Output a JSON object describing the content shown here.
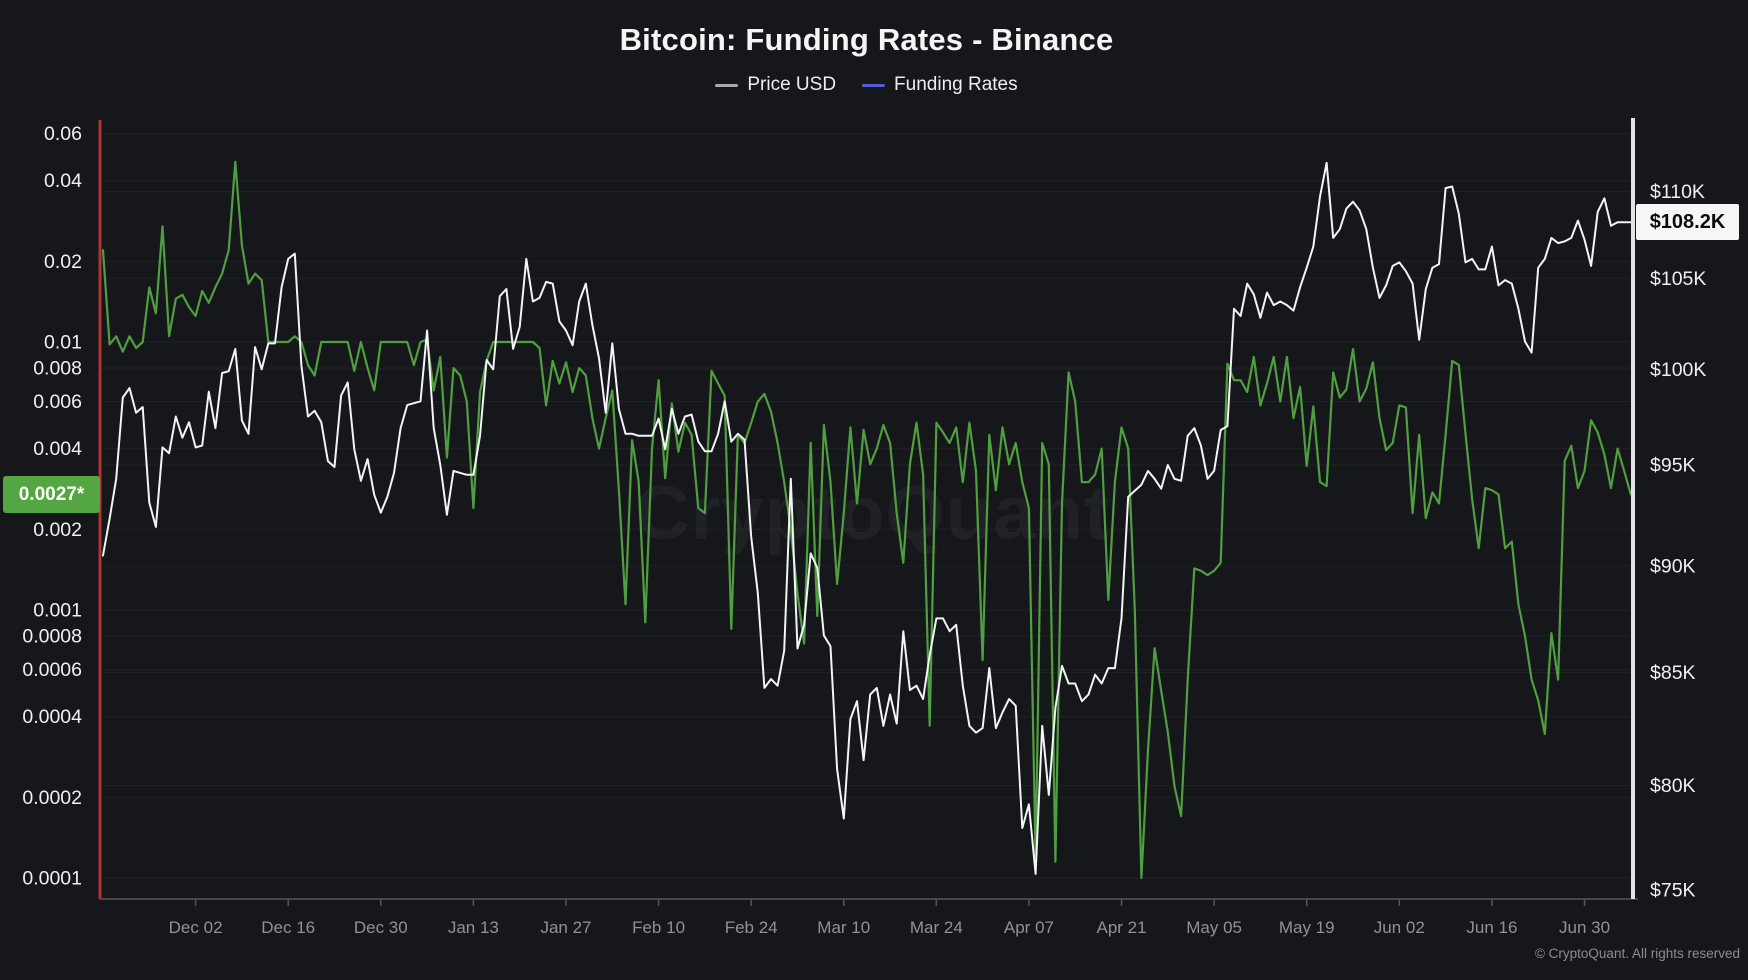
{
  "title": "Bitcoin: Funding Rates - Binance",
  "legend": [
    {
      "label": "Price USD",
      "color": "#a7a9ad"
    },
    {
      "label": "Funding Rates",
      "color": "#575dd8"
    }
  ],
  "badges": {
    "funding_current_label": "0.0027*",
    "price_current_label": "$108.2K"
  },
  "watermark": "CryptoQuant",
  "copyright": "© CryptoQuant. All rights reserved",
  "colors": {
    "background": "#16171b",
    "price_line": "#f2f4f6",
    "funding_line": "#4f9e3f",
    "red_marker_line": "#ad3534",
    "right_axis_line": "#e2e3e5",
    "baseline": "#55565b",
    "grid": "rgba(255,255,255,0.045)",
    "axis_label": "#eef0f2",
    "date_label": "#8f929a",
    "funding_badge_bg": "#54a642",
    "price_badge_bg": "#f5f6f7"
  },
  "chart_data": {
    "type": "line",
    "title": "Bitcoin: Funding Rates - Binance",
    "x_axis": {
      "start_date": "2024-11-18",
      "end_date": "2025-07-07",
      "interval_days": 1,
      "tick_labels": [
        "Dec 02",
        "Dec 16",
        "Dec 30",
        "Jan 13",
        "Jan 27",
        "Feb 10",
        "Feb 24",
        "Mar 10",
        "Mar 24",
        "Apr 07",
        "Apr 21",
        "May 05",
        "May 19",
        "Jun 02",
        "Jun 16",
        "Jun 30"
      ],
      "tick_day_offsets": [
        14,
        28,
        42,
        56,
        70,
        84,
        98,
        112,
        126,
        140,
        154,
        168,
        182,
        196,
        210,
        224
      ]
    },
    "y_left": {
      "name": "Funding Rates",
      "scale": "log",
      "tick_labels": [
        "0.06",
        "0.04",
        "0.02",
        "0.01",
        "0.008",
        "0.006",
        "0.004",
        "0.002",
        "0.001",
        "0.0008",
        "0.0006",
        "0.0004",
        "0.0002",
        "0.0001"
      ],
      "tick_values": [
        0.06,
        0.04,
        0.02,
        0.01,
        0.008,
        0.006,
        0.004,
        0.002,
        0.001,
        0.0008,
        0.0006,
        0.0004,
        0.0002,
        0.0001
      ],
      "current_value": 0.0027
    },
    "y_right": {
      "name": "Price USD",
      "scale": "log",
      "unit": "USD (thousands)",
      "tick_labels": [
        "$110K",
        "$105K",
        "$100K",
        "$95K",
        "$90K",
        "$85K",
        "$80K",
        "$75K"
      ],
      "tick_values": [
        110,
        105,
        100,
        95,
        90,
        85,
        80,
        75
      ],
      "current_value": 108.2
    },
    "series": [
      {
        "name": "Price USD",
        "axis": "right",
        "color": "#f2f4f6",
        "values": [
          90.5,
          92.3,
          94.3,
          98.5,
          99.0,
          97.7,
          98.0,
          93.1,
          91.9,
          95.9,
          95.6,
          97.5,
          96.4,
          97.2,
          95.9,
          96.0,
          98.8,
          96.9,
          99.8,
          99.9,
          101.1,
          97.3,
          96.6,
          101.2,
          100.0,
          101.4,
          101.4,
          104.5,
          106.1,
          106.4,
          100.2,
          97.5,
          97.8,
          97.2,
          95.2,
          94.9,
          98.6,
          99.3,
          95.8,
          94.2,
          95.3,
          93.5,
          92.6,
          93.4,
          94.6,
          96.9,
          98.1,
          98.2,
          98.3,
          102.1,
          96.9,
          95.0,
          92.5,
          94.7,
          94.6,
          94.5,
          94.5,
          96.5,
          100.5,
          100.0,
          104.0,
          104.4,
          101.1,
          102.3,
          106.1,
          103.7,
          103.9,
          104.8,
          104.7,
          102.6,
          102.1,
          101.3,
          103.7,
          104.7,
          102.4,
          100.6,
          97.7,
          101.4,
          97.9,
          96.6,
          96.6,
          96.5,
          96.5,
          96.5,
          97.4,
          95.8,
          97.9,
          96.6,
          97.5,
          97.6,
          96.2,
          95.7,
          95.7,
          96.6,
          98.3,
          96.2,
          96.6,
          96.3,
          91.4,
          88.7,
          84.3,
          84.7,
          84.4,
          86.0,
          94.3,
          86.1,
          87.2,
          90.6,
          89.9,
          86.7,
          86.2,
          80.7,
          78.6,
          82.9,
          83.7,
          81.1,
          84.0,
          84.3,
          82.6,
          84.0,
          82.7,
          86.9,
          84.2,
          84.4,
          83.8,
          85.8,
          87.5,
          87.5,
          86.9,
          87.2,
          84.4,
          82.6,
          82.3,
          82.5,
          85.2,
          82.5,
          83.2,
          83.8,
          83.5,
          78.2,
          79.2,
          76.3,
          82.6,
          79.6,
          83.4,
          85.3,
          84.5,
          84.5,
          83.7,
          84.0,
          84.9,
          84.5,
          85.2,
          85.2,
          87.5,
          93.4,
          93.7,
          94.0,
          94.7,
          94.3,
          93.8,
          95.0,
          94.3,
          94.2,
          96.5,
          96.9,
          96.0,
          94.3,
          94.7,
          96.8,
          97.0,
          103.3,
          102.9,
          104.7,
          104.1,
          102.8,
          104.2,
          103.5,
          103.7,
          103.5,
          103.2,
          104.5,
          105.6,
          106.8,
          109.7,
          111.7,
          107.3,
          107.8,
          109.0,
          109.4,
          108.9,
          107.8,
          105.6,
          103.9,
          104.6,
          105.7,
          105.9,
          105.4,
          104.7,
          101.6,
          104.4,
          105.6,
          105.8,
          110.2,
          110.3,
          108.7,
          105.9,
          106.1,
          105.5,
          105.5,
          106.8,
          104.6,
          104.9,
          104.7,
          103.3,
          101.5,
          100.9,
          105.6,
          106.1,
          107.3,
          107.0,
          107.1,
          107.3,
          108.3,
          107.2,
          105.7,
          108.8,
          109.6,
          108.0,
          108.2,
          108.2,
          108.2
        ]
      },
      {
        "name": "Funding Rates",
        "axis": "left",
        "color": "#4f9e3f",
        "values": [
          0.022,
          0.0098,
          0.0105,
          0.0092,
          0.0105,
          0.0095,
          0.01,
          0.016,
          0.0128,
          0.027,
          0.0105,
          0.0145,
          0.015,
          0.0135,
          0.0125,
          0.0155,
          0.014,
          0.016,
          0.018,
          0.022,
          0.047,
          0.023,
          0.0165,
          0.018,
          0.017,
          0.01,
          0.01,
          0.01,
          0.01,
          0.0105,
          0.01,
          0.0082,
          0.0075,
          0.01,
          0.01,
          0.01,
          0.01,
          0.01,
          0.0078,
          0.01,
          0.008,
          0.0066,
          0.01,
          0.01,
          0.01,
          0.01,
          0.01,
          0.0082,
          0.01,
          0.0102,
          0.0066,
          0.0088,
          0.0037,
          0.008,
          0.0075,
          0.006,
          0.0024,
          0.0065,
          0.0085,
          0.01,
          0.01,
          0.01,
          0.01,
          0.01,
          0.01,
          0.01,
          0.0095,
          0.0058,
          0.0085,
          0.007,
          0.0084,
          0.0065,
          0.008,
          0.0075,
          0.0052,
          0.004,
          0.0052,
          0.0066,
          0.0028,
          0.00105,
          0.0043,
          0.003,
          0.0009,
          0.004,
          0.0072,
          0.0031,
          0.0059,
          0.0039,
          0.005,
          0.0045,
          0.0024,
          0.0023,
          0.0078,
          0.007,
          0.0063,
          0.00085,
          0.0045,
          0.0042,
          0.005,
          0.006,
          0.0064,
          0.0055,
          0.0042,
          0.003,
          0.002,
          0.00115,
          0.00075,
          0.0042,
          0.00095,
          0.0049,
          0.003,
          0.00125,
          0.0023,
          0.0048,
          0.0025,
          0.0047,
          0.0035,
          0.004,
          0.0049,
          0.0042,
          0.0023,
          0.0015,
          0.0035,
          0.005,
          0.0032,
          0.00037,
          0.005,
          0.0046,
          0.0042,
          0.0048,
          0.003,
          0.005,
          0.0033,
          0.00065,
          0.0045,
          0.0028,
          0.0048,
          0.0035,
          0.0042,
          0.003,
          0.0024,
          0.00012,
          0.0042,
          0.0035,
          0.000115,
          0.0025,
          0.0077,
          0.006,
          0.003,
          0.003,
          0.0032,
          0.004,
          0.00109,
          0.003,
          0.0048,
          0.004,
          0.001,
          0.0001,
          0.0003,
          0.00072,
          0.0005,
          0.00035,
          0.00022,
          0.00017,
          0.00055,
          0.00143,
          0.0014,
          0.00135,
          0.0014,
          0.0015,
          0.0083,
          0.0072,
          0.0072,
          0.0065,
          0.0088,
          0.0058,
          0.007,
          0.0088,
          0.006,
          0.0088,
          0.0052,
          0.0068,
          0.00345,
          0.00575,
          0.003,
          0.0029,
          0.0077,
          0.0062,
          0.00665,
          0.0094,
          0.006,
          0.0067,
          0.0084,
          0.0052,
          0.00395,
          0.0042,
          0.0058,
          0.0057,
          0.0023,
          0.0045,
          0.0022,
          0.00275,
          0.0025,
          0.0045,
          0.0085,
          0.0082,
          0.00455,
          0.0026,
          0.0017,
          0.00285,
          0.0028,
          0.0027,
          0.0017,
          0.0018,
          0.00105,
          0.0008,
          0.00055,
          0.00046,
          0.000345,
          0.00082,
          0.00055,
          0.0036,
          0.0041,
          0.00285,
          0.0033,
          0.0051,
          0.0046,
          0.0038,
          0.00285,
          0.004,
          0.0033,
          0.0027
        ]
      }
    ]
  }
}
